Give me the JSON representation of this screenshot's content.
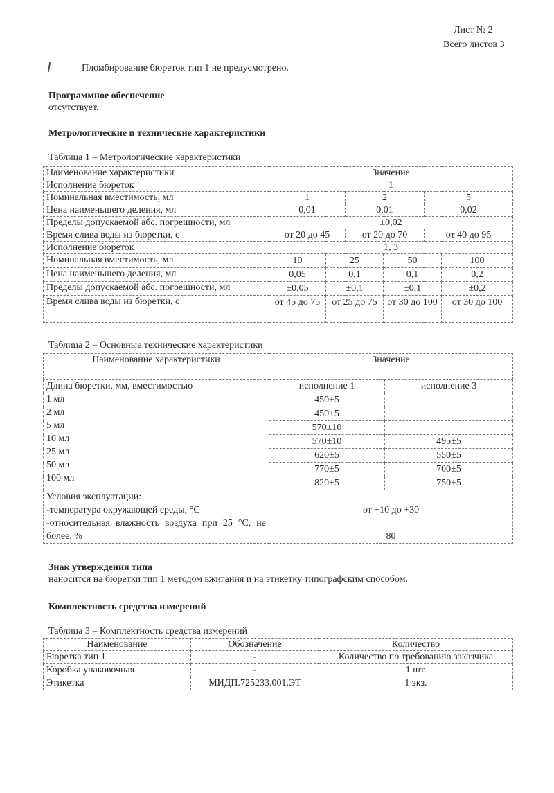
{
  "header": {
    "sheet": "Лист № 2",
    "total": "Всего листов 3"
  },
  "sealing_text": "Пломбирование бюреток тип 1 не предусмотрено.",
  "software": {
    "heading": "Программное обеспечение",
    "text": "отсутствует."
  },
  "metro_heading": "Метрологические и технические характеристики",
  "table1": {
    "caption": "Таблица 1 – Метрологические характеристики",
    "header": [
      "Наименование характеристики",
      "Значение"
    ],
    "group1": {
      "label": "Исполнение бюреток",
      "value": "1",
      "rows": [
        {
          "name": "Номинальная вместимость, мл",
          "values": [
            "1",
            "2",
            "5"
          ]
        },
        {
          "name": "Цена наименьшего деления, мл",
          "values": [
            "0,01",
            "0,01",
            "0,02"
          ]
        },
        {
          "name": "Пределы допускаемой абс. погрешности, мл",
          "values": [
            "±0,02"
          ]
        },
        {
          "name": "Время слива воды из бюретки, с",
          "values": [
            "от 20 до 45",
            "от 20 до 70",
            "от 40 до 95"
          ]
        }
      ]
    },
    "group2": {
      "label": "Исполнение бюреток",
      "value": "1, 3",
      "rows": [
        {
          "name": "Номинальная вместимость, мл",
          "values": [
            "10",
            "25",
            "50",
            "100"
          ]
        },
        {
          "name": "Цена наименьшего деления, мл",
          "values": [
            "0,05",
            "0,1",
            "0,1",
            "0,2"
          ]
        },
        {
          "name": "Пределы допускаемой абс. погрешности, мл",
          "values": [
            "±0,05",
            "±0,1",
            "±0,1",
            "±0,2"
          ]
        },
        {
          "name": "Время слива воды из бюретки, с",
          "values": [
            "от 45 до 75",
            "от 25 до 75",
            "от 30 до 100",
            "от 30 до 100"
          ]
        }
      ]
    }
  },
  "table2": {
    "caption": "Таблица 2 – Основные технические  характеристики",
    "header": [
      "Наименование характеристики",
      "Значение"
    ],
    "length_label": "Длина бюретки, мм, вместимостью",
    "sub_headers": [
      "исполнение 1",
      "исполнение 3"
    ],
    "rows": [
      {
        "name": "1 мл",
        "v1": "450±5",
        "v3": ""
      },
      {
        "name": "2 мл",
        "v1": "450±5",
        "v3": ""
      },
      {
        "name": "5 мл",
        "v1": "570±10",
        "v3": ""
      },
      {
        "name": "10 мл",
        "v1": "570±10",
        "v3": "495±5"
      },
      {
        "name": "25 мл",
        "v1": "620±5",
        "v3": "550±5"
      },
      {
        "name": "50 мл",
        "v1": "770±5",
        "v3": "700±5"
      },
      {
        "name": "100 мл",
        "v1": "820±5",
        "v3": "750±5"
      }
    ],
    "conditions": {
      "title": "Условия эксплуатации:",
      "temp_label": "-температура окружающей среды, °С",
      "humidity_label": "-относительная влажность воздуха при 25 °С, не более, %",
      "temp_value": "от +10 до +30",
      "humidity_value": "80"
    }
  },
  "approval": {
    "heading": "Знак утверждения типа",
    "text": "наносится  на бюретки тип 1 методом вжигания и на этикетку типографским способом."
  },
  "completeness_heading": "Комплектность средства измерений",
  "table3": {
    "caption": "Таблица 3 – Комплектность средства измерений",
    "header": [
      "Наименование",
      "Обозначение",
      "Количество"
    ],
    "rows": [
      [
        "Бюретка тип 1",
        "-",
        "Количество по требованию заказчика"
      ],
      [
        "Коробка упаковочная",
        "-",
        "1 шт."
      ],
      [
        "Этикетка",
        "МИДП.725233.001.ЭТ",
        "1 экз."
      ]
    ]
  }
}
